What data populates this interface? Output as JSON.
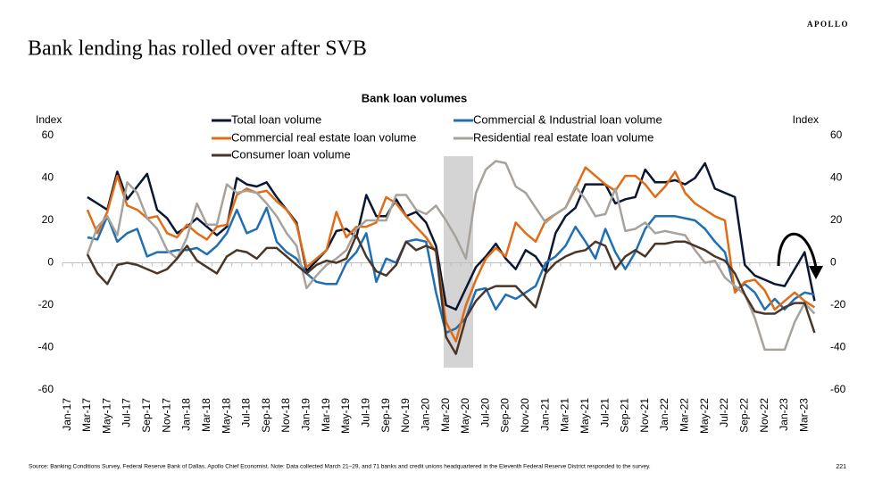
{
  "brand": "APOLLO",
  "page_title": "Bank lending has rolled over after SVB",
  "footnote": "Source: Banking Conditions Survey, Federal Reserve Bank of Dallas, Apollo Chief Economist. Note: Data collected March 21–29, and 71 banks and credit unions headquartered in the Eleventh Federal Reserve District responded to the survey.",
  "page_number": "221",
  "chart_data": {
    "type": "line",
    "title": "Bank loan volumes",
    "y_label": "Index",
    "y2_label": "Index",
    "categories": [
      "Jan-17",
      null,
      "Mar-17",
      null,
      "May-17",
      null,
      "Jul-17",
      null,
      "Sep-17",
      null,
      "Nov-17",
      null,
      "Jan-18",
      null,
      "Mar-18",
      null,
      "May-18",
      null,
      "Jul-18",
      null,
      "Sep-18",
      null,
      "Nov-18",
      null,
      "Jan-19",
      null,
      "Mar-19",
      null,
      "May-19",
      null,
      "Jul-19",
      null,
      "Sep-19",
      null,
      "Nov-19",
      null,
      "Jan-20",
      null,
      "Mar-20",
      null,
      "May-20",
      null,
      "Jul-20",
      null,
      "Sep-20",
      null,
      "Nov-20",
      null,
      "Jan-21",
      null,
      "Mar-21",
      null,
      "May-21",
      null,
      "Jul-21",
      null,
      "Sep-21",
      null,
      "Nov-21",
      null,
      "Jan-22",
      null,
      "Mar-22",
      null,
      "May-22",
      null,
      "Jul-22",
      null,
      "Sep-22",
      null,
      "Nov-22",
      null,
      "Jan-23",
      null,
      "Mar-23",
      null
    ],
    "ylim": [
      -60,
      60
    ],
    "yticks": [
      -60,
      -40,
      -20,
      0,
      20,
      40,
      60
    ],
    "y2lim": [
      -60,
      60
    ],
    "y2ticks": [
      -60,
      -40,
      -20,
      0,
      20,
      40,
      60
    ],
    "series": [
      {
        "name": "Total loan volume",
        "color": "#0a1633",
        "values": [
          null,
          null,
          31,
          28,
          25,
          43,
          30,
          36,
          42,
          25,
          21,
          14,
          17,
          21,
          17,
          13,
          17,
          40,
          37,
          36,
          38,
          31,
          25,
          19,
          -4,
          1,
          6,
          15,
          16,
          12,
          32,
          22,
          22,
          30,
          22,
          24,
          19,
          8,
          -20,
          -22,
          -12,
          -2,
          3,
          9,
          2,
          -3,
          6,
          3,
          -4,
          14,
          22,
          26,
          37,
          37,
          37,
          28,
          30,
          31,
          44,
          38,
          38,
          39,
          37,
          40,
          47,
          35,
          33,
          31,
          -1,
          -6,
          -8,
          -10,
          -11,
          -3,
          5,
          -18
        ]
      },
      {
        "name": "Commercial & Industrial loan volume",
        "color": "#1f6fb4",
        "values": [
          null,
          null,
          12,
          11,
          22,
          10,
          14,
          16,
          3,
          5,
          5,
          6,
          6,
          7,
          4,
          8,
          14,
          25,
          14,
          16,
          26,
          10,
          5,
          2,
          -5,
          -9,
          -10,
          -10,
          0,
          5,
          14,
          -9,
          2,
          0,
          10,
          11,
          10,
          -14,
          -33,
          -31,
          -26,
          -13,
          -12,
          -22,
          -15,
          -17,
          -14,
          -11,
          0,
          3,
          8,
          17,
          10,
          2,
          16,
          5,
          -3,
          5,
          16,
          22,
          22,
          22,
          21,
          20,
          16,
          10,
          5,
          -13,
          -10,
          -14,
          -22,
          -17,
          -22,
          -17,
          -14,
          -15
        ]
      },
      {
        "name": "Commercial real estate loan volume",
        "color": "#e06c16",
        "values": [
          null,
          null,
          25,
          14,
          24,
          41,
          27,
          25,
          21,
          22,
          14,
          12,
          18,
          14,
          11,
          17,
          18,
          32,
          35,
          33,
          34,
          29,
          25,
          18,
          -2,
          2,
          6,
          24,
          12,
          17,
          17,
          19,
          31,
          28,
          22,
          17,
          12,
          5,
          -28,
          -37,
          -20,
          -8,
          2,
          7,
          3,
          19,
          14,
          10,
          20,
          23,
          26,
          35,
          45,
          41,
          37,
          34,
          41,
          41,
          37,
          31,
          36,
          43,
          33,
          28,
          25,
          22,
          20,
          -14,
          -9,
          -8,
          -13,
          -22,
          -18,
          -14,
          -18,
          -21
        ]
      },
      {
        "name": "Residential real estate loan volume",
        "color": "#a8a29c",
        "values": [
          null,
          null,
          4,
          17,
          22,
          13,
          38,
          33,
          21,
          16,
          6,
          2,
          12,
          28,
          18,
          18,
          37,
          33,
          34,
          33,
          28,
          22,
          14,
          8,
          -12,
          -6,
          -1,
          2,
          6,
          16,
          20,
          20,
          20,
          32,
          32,
          25,
          23,
          27,
          20,
          12,
          2,
          33,
          44,
          48,
          47,
          36,
          33,
          26,
          19,
          23,
          26,
          36,
          30,
          22,
          23,
          35,
          15,
          16,
          19,
          14,
          15,
          14,
          13,
          6,
          0,
          1,
          -7,
          -11,
          -15,
          -26,
          -41,
          -41,
          -41,
          -28,
          -19,
          -24
        ]
      },
      {
        "name": "Consumer loan volume",
        "color": "#4a3628",
        "values": [
          null,
          null,
          4,
          -5,
          -10,
          -1,
          0,
          -1,
          -3,
          -5,
          -3,
          2,
          8,
          1,
          -2,
          -5,
          3,
          6,
          5,
          2,
          7,
          7,
          3,
          -1,
          -5,
          -1,
          1,
          0,
          2,
          13,
          3,
          -4,
          -6,
          -1,
          10,
          6,
          8,
          6,
          -35,
          -43,
          -26,
          -18,
          -13,
          -11,
          -11,
          -11,
          -16,
          -21,
          -5,
          0,
          3,
          5,
          6,
          10,
          8,
          -3,
          3,
          6,
          3,
          9,
          9,
          10,
          10,
          8,
          6,
          3,
          1,
          -5,
          -15,
          -23,
          -24,
          -24,
          -21,
          -19,
          -19,
          -33
        ]
      }
    ]
  }
}
